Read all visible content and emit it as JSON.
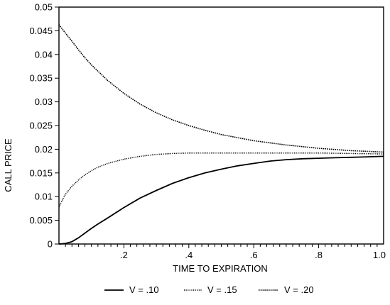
{
  "chart_data": {
    "type": "line",
    "xlabel": "TIME TO EXPIRATION",
    "ylabel": "CALL PRICE",
    "xlim": [
      0,
      1.0
    ],
    "ylim": [
      0,
      0.05
    ],
    "grid": false,
    "legend_position": "bottom",
    "x_ticks": [
      {
        "value": 0.2,
        "label": ".2"
      },
      {
        "value": 0.4,
        "label": ".4"
      },
      {
        "value": 0.6,
        "label": ".6"
      },
      {
        "value": 0.8,
        "label": ".8"
      },
      {
        "value": 1.0,
        "label": "1.0"
      }
    ],
    "y_ticks": [
      {
        "value": 0,
        "label": "0"
      },
      {
        "value": 0.005,
        "label": "0.005"
      },
      {
        "value": 0.01,
        "label": "0.01"
      },
      {
        "value": 0.015,
        "label": "0.015"
      },
      {
        "value": 0.02,
        "label": "0.02"
      },
      {
        "value": 0.025,
        "label": "0.025"
      },
      {
        "value": 0.03,
        "label": "0.03"
      },
      {
        "value": 0.035,
        "label": "0.035"
      },
      {
        "value": 0.04,
        "label": "0.04"
      },
      {
        "value": 0.045,
        "label": "0.045"
      },
      {
        "value": 0.05,
        "label": "0.05"
      }
    ],
    "series": [
      {
        "name": "V = .10",
        "style": "solid",
        "x": [
          0.0,
          0.02,
          0.04,
          0.06,
          0.08,
          0.1,
          0.12,
          0.15,
          0.2,
          0.25,
          0.3,
          0.35,
          0.4,
          0.45,
          0.5,
          0.55,
          0.6,
          0.65,
          0.7,
          0.75,
          0.8,
          0.85,
          0.9,
          0.95,
          1.0
        ],
        "values": [
          0.0,
          0.0001,
          0.0005,
          0.0013,
          0.0023,
          0.0033,
          0.0042,
          0.0055,
          0.0077,
          0.0097,
          0.0113,
          0.0128,
          0.014,
          0.015,
          0.0158,
          0.0165,
          0.017,
          0.0175,
          0.0178,
          0.018,
          0.0181,
          0.0182,
          0.0183,
          0.0184,
          0.0185
        ]
      },
      {
        "name": "V = .15",
        "style": "dotted",
        "x": [
          0.0,
          0.01,
          0.02,
          0.04,
          0.06,
          0.08,
          0.1,
          0.12,
          0.15,
          0.2,
          0.25,
          0.3,
          0.35,
          0.4,
          0.5,
          0.6,
          0.7,
          0.8,
          0.9,
          1.0
        ],
        "values": [
          0.0078,
          0.0092,
          0.0105,
          0.0122,
          0.0135,
          0.0146,
          0.0155,
          0.0162,
          0.017,
          0.0179,
          0.0185,
          0.0189,
          0.0191,
          0.0192,
          0.0192,
          0.0192,
          0.0192,
          0.0192,
          0.0191,
          0.019
        ]
      },
      {
        "name": "V = .20",
        "style": "dense-dotted",
        "x": [
          0.0,
          0.02,
          0.04,
          0.06,
          0.08,
          0.1,
          0.15,
          0.2,
          0.25,
          0.3,
          0.35,
          0.4,
          0.45,
          0.5,
          0.6,
          0.7,
          0.8,
          0.9,
          1.0
        ],
        "values": [
          0.0463,
          0.0445,
          0.0428,
          0.041,
          0.0393,
          0.0378,
          0.0345,
          0.0318,
          0.0295,
          0.0277,
          0.0262,
          0.025,
          0.024,
          0.0231,
          0.0218,
          0.0209,
          0.0202,
          0.0197,
          0.0194
        ]
      }
    ]
  }
}
